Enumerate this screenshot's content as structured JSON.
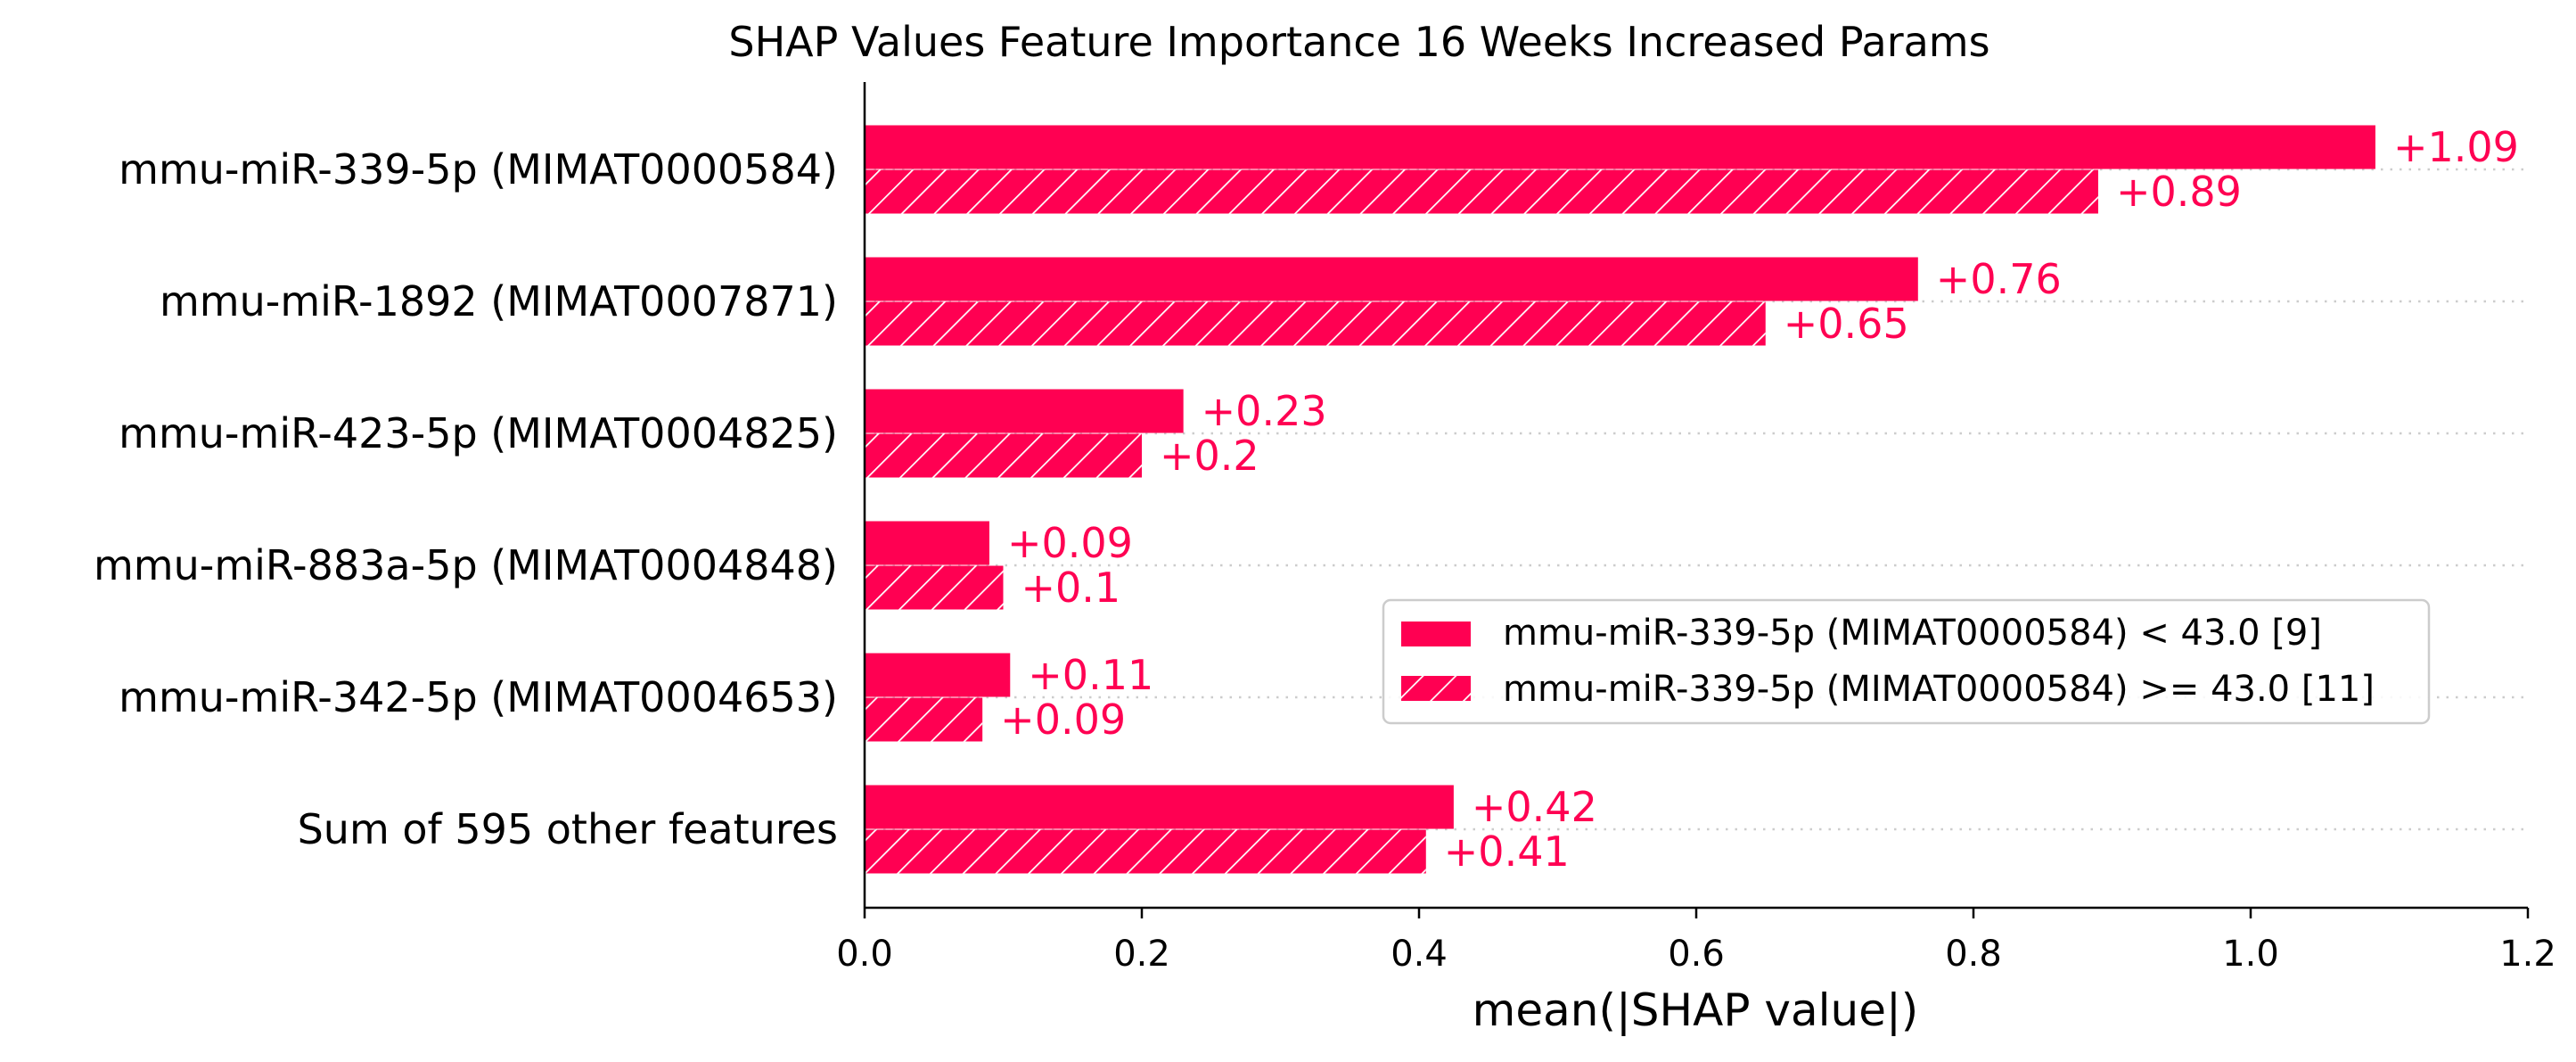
{
  "chart_data": {
    "type": "bar",
    "orientation": "horizontal",
    "title": "SHAP Values Feature Importance 16 Weeks Increased Params",
    "xlabel": "mean(|SHAP value|)",
    "ylabel": "",
    "xlim": [
      0.0,
      1.2
    ],
    "xticks": [
      "0.0",
      "0.2",
      "0.4",
      "0.6",
      "0.8",
      "1.0",
      "1.2"
    ],
    "grid": "dotted horizontal lines per feature",
    "legend_position": "center-right",
    "categories": [
      "mmu-miR-339-5p (MIMAT0000584)",
      "mmu-miR-1892 (MIMAT0007871)",
      "mmu-miR-423-5p (MIMAT0004825)",
      "mmu-miR-883a-5p (MIMAT0004848)",
      "mmu-miR-342-5p (MIMAT0004653)",
      "Sum of 595 other features"
    ],
    "series": [
      {
        "name": "mmu-miR-339-5p (MIMAT0000584) < 43.0 [9]",
        "pattern": "solid",
        "values": [
          1.09,
          0.76,
          0.23,
          0.09,
          0.105,
          0.425
        ],
        "labels": [
          "+1.09",
          "+0.76",
          "+0.23",
          "+0.09",
          "+0.11",
          "+0.42"
        ]
      },
      {
        "name": "mmu-miR-339-5p (MIMAT0000584) >= 43.0 [11]",
        "pattern": "hatched",
        "values": [
          0.89,
          0.65,
          0.2,
          0.1,
          0.085,
          0.405
        ],
        "labels": [
          "+0.89",
          "+0.65",
          "+0.2",
          "+0.1",
          "+0.09",
          "+0.41"
        ]
      }
    ],
    "colors": {
      "bar": "#ff0052",
      "axis": "#000000",
      "grid": "#cccccc"
    }
  }
}
